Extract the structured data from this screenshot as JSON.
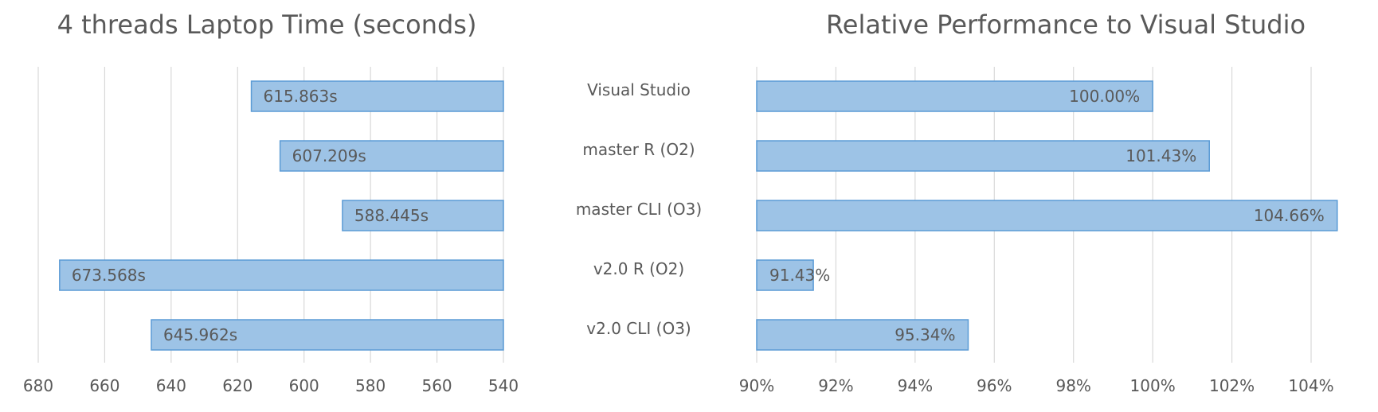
{
  "categories": [
    "Visual Studio",
    "master R (O2)",
    "master CLI (O3)",
    "v2.0 R (O2)",
    "v2.0 CLI (O3)"
  ],
  "chart_data": [
    {
      "type": "bar",
      "title": "4 threads Laptop Time (seconds)",
      "orientation": "horizontal",
      "x_axis_reversed": true,
      "categories": [
        "Visual Studio",
        "master R (O2)",
        "master CLI (O3)",
        "v2.0 R (O2)",
        "v2.0 CLI (O3)"
      ],
      "values": [
        615.863,
        607.209,
        588.445,
        673.568,
        645.962
      ],
      "data_labels": [
        "615.863s",
        "607.209s",
        "588.445s",
        "673.568s",
        "645.962s"
      ],
      "xlim": [
        540,
        680
      ],
      "ticks": [
        680,
        660,
        640,
        620,
        600,
        580,
        560,
        540
      ],
      "tick_labels": [
        "680",
        "660",
        "640",
        "620",
        "600",
        "580",
        "560",
        "540"
      ],
      "grid": true,
      "bar_color": "#9dc3e6",
      "bar_edge_color": "#5b9bd5"
    },
    {
      "type": "bar",
      "title": "Relative Performance to Visual Studio",
      "orientation": "horizontal",
      "categories": [
        "Visual Studio",
        "master R (O2)",
        "master CLI (O3)",
        "v2.0 R (O2)",
        "v2.0 CLI (O3)"
      ],
      "values": [
        100.0,
        101.43,
        104.66,
        91.43,
        95.34
      ],
      "data_labels": [
        "100.00%",
        "101.43%",
        "104.66%",
        "91.43%",
        "95.34%"
      ],
      "xlim": [
        90,
        104.7
      ],
      "ticks": [
        90,
        92,
        94,
        96,
        98,
        100,
        102,
        104
      ],
      "tick_labels": [
        "90%",
        "92%",
        "94%",
        "96%",
        "98%",
        "100%",
        "102%",
        "104%"
      ],
      "grid": true,
      "bar_color": "#9dc3e6",
      "bar_edge_color": "#5b9bd5"
    }
  ]
}
